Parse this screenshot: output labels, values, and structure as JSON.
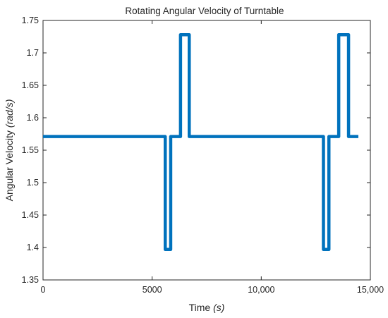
{
  "chart_data": {
    "type": "line",
    "title": "Rotating Angular Velocity of Turntable",
    "xlabel": {
      "text": "Time ",
      "unit": "(s)"
    },
    "ylabel": {
      "text": "Angular Velocity ",
      "unit": "(rad/s)"
    },
    "xlim": [
      0,
      15000
    ],
    "ylim": [
      1.35,
      1.75
    ],
    "x_ticks": [
      0,
      5000,
      10000,
      15000
    ],
    "x_tick_labels": [
      "0",
      "5000",
      "10,000",
      "15,000"
    ],
    "y_ticks": [
      1.35,
      1.4,
      1.45,
      1.5,
      1.55,
      1.6,
      1.65,
      1.7,
      1.75
    ],
    "y_tick_labels": [
      "1.35",
      "1.4",
      "1.45",
      "1.5",
      "1.55",
      "1.6",
      "1.65",
      "1.7",
      "1.75"
    ],
    "grid": false,
    "legend": "none",
    "series": [
      {
        "color": "#0072BD",
        "x": [
          0,
          5600,
          5600,
          5850,
          5850,
          6300,
          6300,
          6550,
          6550,
          6700,
          6700,
          12850,
          12850,
          13100,
          13100,
          13550,
          13550,
          13800,
          13800,
          14000,
          14000,
          14450
        ],
        "y": [
          1.571,
          1.571,
          1.397,
          1.397,
          1.571,
          1.571,
          1.728,
          1.728,
          1.728,
          1.728,
          1.571,
          1.571,
          1.397,
          1.397,
          1.571,
          1.571,
          1.728,
          1.728,
          1.728,
          1.728,
          1.571,
          1.571
        ]
      }
    ]
  }
}
